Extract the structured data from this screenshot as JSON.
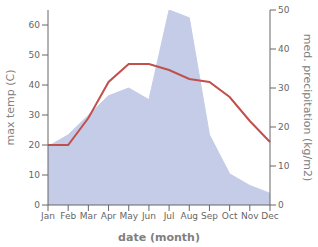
{
  "chart_data": {
    "type": "line",
    "categories": [
      "Jan",
      "Feb",
      "Mar",
      "Apr",
      "May",
      "Jun",
      "Jul",
      "Aug",
      "Sep",
      "Oct",
      "Nov",
      "Dec"
    ],
    "xlabel": "date (month)",
    "ylabel": "max temp (C)",
    "y2label": "med. precipitation (kg/m2)",
    "ylim": [
      0,
      65
    ],
    "yticks": [
      0,
      10,
      20,
      30,
      40,
      50,
      60
    ],
    "y2lim": [
      0,
      50
    ],
    "y2ticks": [
      0,
      10,
      20,
      30,
      40,
      50
    ],
    "grid": false,
    "series": [
      {
        "type": "area",
        "color": "#c5cce8",
        "axis": "y2",
        "values": [
          15,
          18,
          23,
          28,
          30,
          27,
          50,
          48,
          18,
          8,
          5,
          3
        ]
      },
      {
        "type": "line",
        "color": "#c0504d",
        "values": [
          20,
          20,
          29,
          41,
          47,
          47,
          45,
          42,
          41,
          36,
          28,
          21
        ]
      }
    ]
  }
}
